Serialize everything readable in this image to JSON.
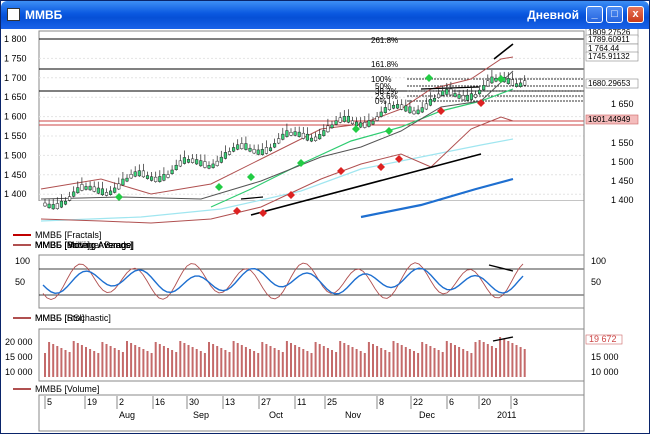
{
  "window": {
    "title": "ММВБ",
    "timeframe": "Дневной",
    "buttons": [
      "_",
      "□",
      "x"
    ]
  },
  "price_panel": {
    "y_ticks": [
      "1 800",
      "1 750",
      "1 700",
      "1 650",
      "1 600",
      "1 550",
      "1 500",
      "1 450",
      "1 400"
    ],
    "right_ticks": [
      "1 700",
      "1 650",
      "1 550",
      "1 500",
      "1 450",
      "1 400"
    ],
    "price_tags": [
      "1809.27526",
      "1789.60911",
      "1 764.44",
      "1745.91132",
      "1680.29653",
      "1601.44949"
    ],
    "fib_labels": [
      "261.8%",
      "161.8%",
      "100%",
      "50%",
      "38.2%",
      "23.6%",
      "0%"
    ],
    "legend": [
      {
        "label": "ММВБ [Fractals]",
        "color": "#c00000"
      },
      {
        "label": "ММВБ [Price]",
        "color": "#555555"
      },
      {
        "label": "ММВБ [Moving Average]",
        "color": "#a0e6f0"
      },
      {
        "label": "ММВБ [Moving Average]",
        "color": "#2ecc71"
      },
      {
        "label": "ММВБ [Moving Average]",
        "color": "#1e6fd0"
      },
      {
        "label": "ММВБ [Bollinger Bands]",
        "color": "#b05050"
      }
    ]
  },
  "osc_panel": {
    "y_ticks": [
      "100",
      "50"
    ],
    "right_ticks": [
      "100",
      "50"
    ],
    "legend": [
      {
        "label": "ММВБ [RSI]",
        "color": "#1e6fd0"
      },
      {
        "label": "ММВБ [Stochastic]",
        "color": "#b05050"
      }
    ]
  },
  "volume_panel": {
    "y_ticks": [
      "20 000",
      "15 000",
      "10 000"
    ],
    "right_ticks": [
      "15 000",
      "10 000"
    ],
    "last_value": "19 672",
    "legend": [
      {
        "label": "ММВБ [Volume]",
        "color": "#b05050"
      }
    ]
  },
  "x_axis": {
    "days": [
      "5",
      "19",
      "2",
      "16",
      "30",
      "13",
      "27",
      "11",
      "25",
      "8",
      "22",
      "6",
      "20",
      "3"
    ],
    "months": [
      "Aug",
      "Sep",
      "Oct",
      "Nov",
      "Dec",
      "2011"
    ]
  },
  "colors": {
    "title_bar": "#0a58e0",
    "bollinger": "#b05050",
    "ma_green": "#2ecc71",
    "ma_cyan": "#a0e6f0",
    "ma_blue": "#1e6fd0",
    "fractal_up": "#22cc44",
    "fractal_down": "#dd2222",
    "price_label_bg": "#f4bcbc"
  }
}
